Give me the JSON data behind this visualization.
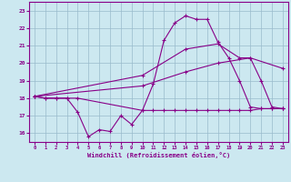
{
  "xlabel": "Windchill (Refroidissement éolien,°C)",
  "background_color": "#cce8f0",
  "line_color": "#880088",
  "grid_color": "#99bbcc",
  "ylim": [
    15.5,
    23.5
  ],
  "xlim": [
    -0.5,
    23.5
  ],
  "yticks": [
    16,
    17,
    18,
    19,
    20,
    21,
    22,
    23
  ],
  "xticks": [
    0,
    1,
    2,
    3,
    4,
    5,
    6,
    7,
    8,
    9,
    10,
    11,
    12,
    13,
    14,
    15,
    16,
    17,
    18,
    19,
    20,
    21,
    22,
    23
  ],
  "line1_x": [
    0,
    1,
    2,
    3,
    4,
    5,
    6,
    7,
    8,
    9,
    10,
    11,
    12,
    13,
    14,
    15,
    16,
    17,
    18,
    19,
    20,
    21,
    22,
    23
  ],
  "line1_y": [
    18.1,
    18.0,
    18.0,
    18.0,
    17.2,
    15.8,
    16.2,
    16.1,
    17.0,
    16.5,
    17.3,
    18.8,
    21.3,
    22.3,
    22.7,
    22.5,
    22.5,
    21.2,
    20.3,
    19.0,
    17.5,
    17.4,
    17.4,
    17.4
  ],
  "line2_x": [
    0,
    1,
    2,
    3,
    4,
    10,
    11,
    12,
    13,
    14,
    15,
    16,
    17,
    18,
    19,
    20,
    21,
    22,
    23
  ],
  "line2_y": [
    18.1,
    18.0,
    18.0,
    18.0,
    18.0,
    17.3,
    17.3,
    17.3,
    17.3,
    17.3,
    17.3,
    17.3,
    17.3,
    17.3,
    17.3,
    17.3,
    17.4,
    17.4,
    17.4
  ],
  "line3_x": [
    0,
    10,
    14,
    17,
    19,
    20,
    21,
    22,
    23
  ],
  "line3_y": [
    18.1,
    19.3,
    20.8,
    21.1,
    20.3,
    20.3,
    19.0,
    17.5,
    17.4
  ],
  "line4_x": [
    0,
    10,
    14,
    17,
    20,
    23
  ],
  "line4_y": [
    18.1,
    18.7,
    19.5,
    20.0,
    20.3,
    19.7
  ]
}
